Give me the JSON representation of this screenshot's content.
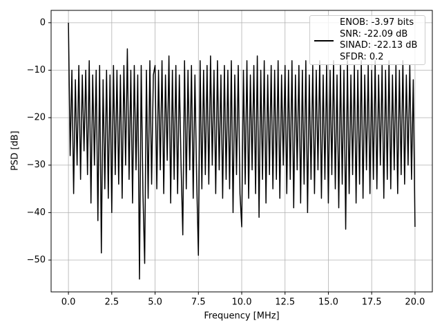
{
  "chart_data": {
    "type": "line",
    "xlabel": "Frequency [MHz]",
    "ylabel": "PSD [dB]",
    "xlim": [
      -1,
      21
    ],
    "ylim": [
      -56.7,
      2.6
    ],
    "xticks": [
      {
        "value": 0,
        "label": "0.0"
      },
      2.5,
      {
        "value": 5,
        "label": "5.0"
      },
      7.5,
      {
        "value": 10,
        "label": "10.0"
      },
      12.5,
      {
        "value": 15,
        "label": "15.0"
      },
      17.5,
      {
        "value": 20,
        "label": "20.0"
      }
    ],
    "yticks": [
      0,
      {
        "value": -10,
        "label": "−10"
      },
      {
        "value": -20,
        "label": "−20"
      },
      {
        "value": -30,
        "label": "−30"
      },
      {
        "value": -40,
        "label": "−40"
      },
      {
        "value": -50,
        "label": "−50"
      }
    ],
    "grid": true,
    "legend": "upper right",
    "x": [
      0,
      0.1,
      0.2,
      0.3,
      0.4,
      0.5,
      0.6,
      0.7,
      0.8,
      0.9,
      1,
      1.1,
      1.2,
      1.3,
      1.4,
      1.5,
      1.6,
      1.7,
      1.8,
      1.9,
      2,
      2.1,
      2.2,
      2.3,
      2.4,
      2.5,
      2.6,
      2.7,
      2.8,
      2.9,
      3,
      3.1,
      3.2,
      3.3,
      3.4,
      3.5,
      3.6,
      3.7,
      3.8,
      3.9,
      4,
      4.1,
      4.2,
      4.3,
      4.4,
      4.5,
      4.6,
      4.7,
      4.8,
      4.9,
      5,
      5.1,
      5.2,
      5.3,
      5.4,
      5.5,
      5.6,
      5.7,
      5.8,
      5.9,
      6,
      6.1,
      6.2,
      6.3,
      6.4,
      6.5,
      6.6,
      6.7,
      6.8,
      6.9,
      7,
      7.1,
      7.2,
      7.3,
      7.4,
      7.5,
      7.6,
      7.7,
      7.8,
      7.9,
      8,
      8.1,
      8.2,
      8.3,
      8.4,
      8.5,
      8.6,
      8.7,
      8.8,
      8.9,
      9,
      9.1,
      9.2,
      9.3,
      9.4,
      9.5,
      9.6,
      9.7,
      9.8,
      9.9,
      10,
      10.1,
      10.2,
      10.3,
      10.4,
      10.5,
      10.6,
      10.7,
      10.8,
      10.9,
      11,
      11.1,
      11.2,
      11.3,
      11.4,
      11.5,
      11.6,
      11.7,
      11.8,
      11.9,
      12,
      12.1,
      12.2,
      12.3,
      12.4,
      12.5,
      12.6,
      12.7,
      12.8,
      12.9,
      13,
      13.1,
      13.2,
      13.3,
      13.4,
      13.5,
      13.6,
      13.7,
      13.8,
      13.9,
      14,
      14.1,
      14.2,
      14.3,
      14.4,
      14.5,
      14.6,
      14.7,
      14.8,
      14.9,
      15,
      15.1,
      15.2,
      15.3,
      15.4,
      15.5,
      15.6,
      15.7,
      15.8,
      15.9,
      16,
      16.1,
      16.2,
      16.3,
      16.4,
      16.5,
      16.6,
      16.7,
      16.8,
      16.9,
      17,
      17.1,
      17.2,
      17.3,
      17.4,
      17.5,
      17.6,
      17.7,
      17.8,
      17.9,
      18,
      18.1,
      18.2,
      18.3,
      18.4,
      18.5,
      18.6,
      18.7,
      18.8,
      18.9,
      19,
      19.1,
      19.2,
      19.3,
      19.4,
      19.5,
      19.6,
      19.7,
      19.8,
      19.9,
      20
    ],
    "series": [
      {
        "name": "ENOB: -3.97 bits\nSNR: -22.09 dB\nSINAD: -22.13 dB\nSFDR: 0.2",
        "color": "#000000",
        "values": [
          0,
          -28,
          -10,
          -36,
          -12,
          -30,
          -9,
          -33,
          -11,
          -27,
          -10,
          -32,
          -8,
          -38,
          -11,
          -30,
          -10,
          -41.7,
          -9,
          -48.5,
          -12,
          -35,
          -10,
          -37,
          -11,
          -40,
          -9,
          -32,
          -10,
          -34,
          -11,
          -37,
          -9,
          -30,
          -5.5,
          -33,
          -10,
          -38,
          -9,
          -31,
          -11,
          -54,
          -9,
          -36,
          -50.7,
          -10,
          -37,
          -8,
          -34,
          -11,
          -9,
          -35,
          -10,
          -31,
          -8,
          -36,
          -11,
          -29,
          -7,
          -38,
          -10,
          -33,
          -9,
          -36,
          -11,
          -30,
          -44.7,
          -8,
          -35,
          -10,
          -31,
          -9,
          -37,
          -11,
          -33,
          -49,
          -8,
          -35,
          -10,
          -32,
          -9,
          -34,
          -7,
          -30,
          -10,
          -36,
          -8,
          -31,
          -11,
          -37,
          -9,
          -33,
          -10,
          -35,
          -8,
          -40,
          -11,
          -32,
          -9,
          -36,
          -43,
          -10,
          -34,
          -8,
          -37,
          -11,
          -31,
          -9,
          -36,
          -7,
          -41,
          -10,
          -33,
          -8,
          -38,
          -11,
          -32,
          -9,
          -35,
          -10,
          -33,
          -8,
          -37,
          -11,
          -30,
          -9,
          -36,
          -10,
          -33,
          -8,
          -39,
          -11,
          -31,
          -9,
          -38,
          -10,
          -34,
          -8,
          -40,
          -11,
          -33,
          -9,
          -36,
          -10,
          -31,
          -8,
          -37,
          -11,
          -33,
          -9,
          -38,
          -10,
          -32,
          -8,
          -35,
          -11,
          -39,
          -9,
          -34,
          -10,
          -43.5,
          -8,
          -36,
          -11,
          -32,
          -9,
          -38,
          -10,
          -34,
          -8,
          -37,
          -11,
          -31,
          -9,
          -36,
          -10,
          -33,
          -8,
          -35,
          -11,
          -30,
          -9,
          -37,
          -10,
          -33,
          -8,
          -35,
          -11,
          -31,
          -9,
          -36,
          -10,
          -32,
          -8,
          -34,
          -11,
          -30,
          -9,
          -33,
          -12,
          -43
        ]
      }
    ]
  }
}
